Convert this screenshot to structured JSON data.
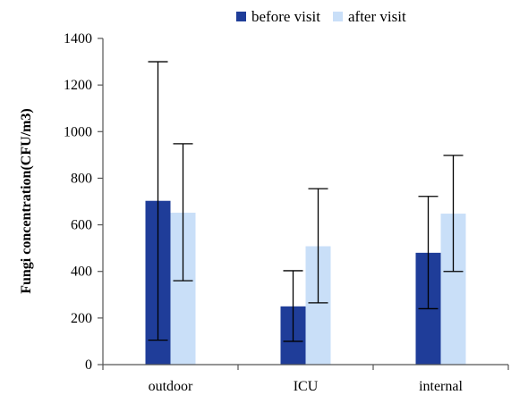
{
  "chart_data": {
    "type": "bar",
    "categories": [
      "outdoor",
      "ICU",
      "internal"
    ],
    "series": [
      {
        "name": "before visit",
        "color": "#1F3D99",
        "values": [
          703,
          250,
          480
        ],
        "error_low": [
          105,
          100,
          240
        ],
        "error_high": [
          1300,
          403,
          722
        ]
      },
      {
        "name": "after visit",
        "color": "#C9DFF8",
        "values": [
          652,
          508,
          648
        ],
        "error_low": [
          360,
          265,
          400
        ],
        "error_high": [
          948,
          755,
          898
        ]
      }
    ],
    "ylabel": "Fungi concentration(CFU/m3)",
    "ylim": [
      0,
      1400
    ],
    "yticks": [
      0,
      200,
      400,
      600,
      800,
      1000,
      1200,
      1400
    ],
    "grid": false,
    "legend_position": "top"
  }
}
